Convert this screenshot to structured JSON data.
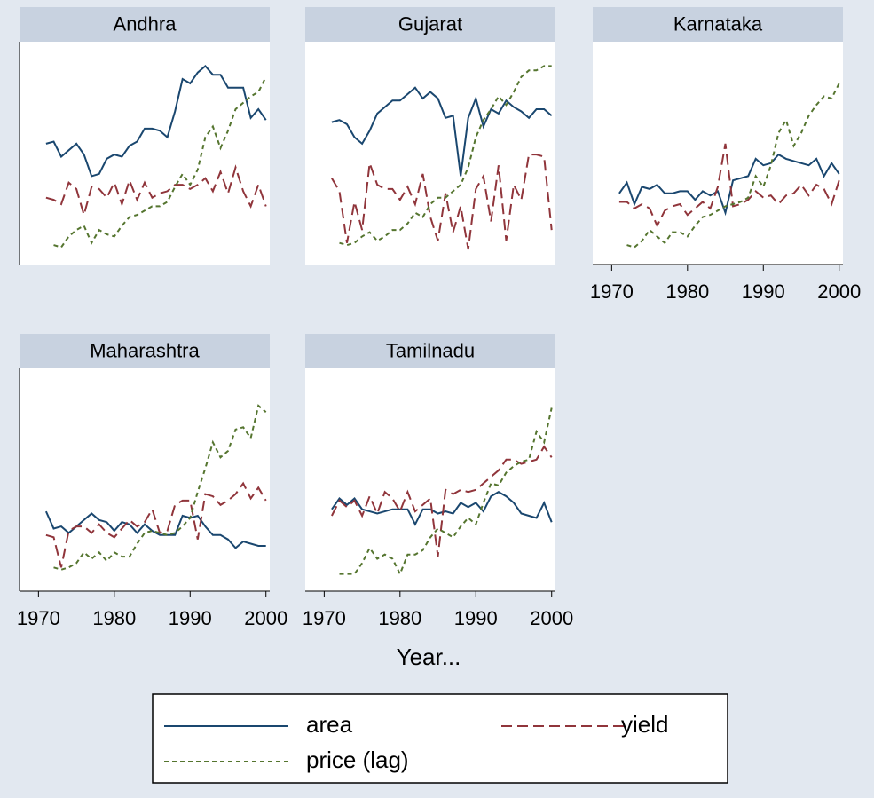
{
  "chart_data": {
    "type": "line",
    "xlabel": "Year...",
    "x": [
      1971,
      1972,
      1973,
      1974,
      1975,
      1976,
      1977,
      1978,
      1979,
      1980,
      1981,
      1982,
      1983,
      1984,
      1985,
      1986,
      1987,
      1988,
      1989,
      1990,
      1991,
      1992,
      1993,
      1994,
      1995,
      1996,
      1997,
      1998,
      1999,
      2000
    ],
    "xlim": [
      1967.5,
      2000.5
    ],
    "xticks": [
      1970,
      1980,
      1990,
      2000
    ],
    "ylim": [
      0,
      100
    ],
    "series": [
      {
        "name": "area",
        "color": "#1a476f",
        "dash": "solid"
      },
      {
        "name": "yield",
        "color": "#90353b",
        "dash": "long"
      },
      {
        "name": "price (lag)",
        "color": "#55752f",
        "dash": "short"
      }
    ],
    "panels": [
      {
        "title": "Andhra",
        "values": [
          [
            56,
            57,
            50,
            53,
            56,
            51,
            41,
            42,
            49,
            51,
            50,
            55,
            57,
            63,
            63,
            62,
            59,
            71,
            86,
            84,
            89,
            92,
            88,
            88,
            82,
            82,
            82,
            68,
            72,
            67
          ],
          [
            31,
            30,
            28,
            38,
            35,
            23,
            36,
            35,
            31,
            38,
            28,
            39,
            30,
            38,
            31,
            33,
            34,
            37,
            37,
            35,
            37,
            40,
            34,
            43,
            33,
            45,
            34,
            27,
            37,
            27
          ],
          [
            null,
            9,
            8,
            13,
            16,
            18,
            10,
            16,
            14,
            13,
            18,
            22,
            23,
            25,
            27,
            27,
            29,
            36,
            42,
            37,
            44,
            59,
            64,
            54,
            62,
            72,
            75,
            78,
            80,
            87
          ]
        ]
      },
      {
        "title": "Gujarat",
        "values": [
          [
            66,
            67,
            65,
            59,
            56,
            62,
            70,
            73,
            76,
            76,
            79,
            82,
            77,
            80,
            77,
            68,
            69,
            41,
            68,
            77,
            64,
            72,
            70,
            76,
            73,
            71,
            68,
            72,
            72,
            69
          ],
          [
            40,
            34,
            10,
            29,
            16,
            47,
            37,
            35,
            35,
            30,
            36,
            28,
            42,
            22,
            11,
            33,
            15,
            27,
            7,
            35,
            41,
            20,
            46,
            11,
            37,
            30,
            51,
            51,
            50,
            16
          ],
          [
            null,
            10,
            9,
            10,
            13,
            15,
            11,
            13,
            16,
            16,
            19,
            24,
            22,
            28,
            31,
            31,
            34,
            37,
            45,
            59,
            67,
            72,
            78,
            74,
            80,
            87,
            90,
            90,
            92,
            92
          ]
        ]
      },
      {
        "title": "Karnataka",
        "values": [
          [
            33,
            38,
            28,
            36,
            35,
            37,
            33,
            33,
            34,
            34,
            30,
            34,
            32,
            34,
            24,
            39,
            40,
            41,
            49,
            46,
            47,
            51,
            49,
            48,
            47,
            46,
            49,
            41,
            47,
            42
          ],
          [
            29,
            29,
            26,
            28,
            26,
            18,
            25,
            27,
            28,
            23,
            26,
            29,
            26,
            36,
            56,
            27,
            28,
            30,
            34,
            31,
            32,
            28,
            32,
            33,
            37,
            32,
            37,
            35,
            28,
            39
          ],
          [
            null,
            9,
            8,
            11,
            16,
            13,
            10,
            15,
            15,
            13,
            18,
            22,
            23,
            25,
            27,
            28,
            29,
            31,
            41,
            36,
            46,
            61,
            67,
            55,
            61,
            69,
            74,
            78,
            77,
            84
          ]
        ]
      },
      {
        "title": "Maharashtra",
        "values": [
          [
            37,
            29,
            30,
            27,
            30,
            33,
            36,
            33,
            32,
            28,
            32,
            31,
            27,
            31,
            28,
            26,
            26,
            26,
            35,
            34,
            35,
            30,
            26,
            26,
            24,
            20,
            23,
            22,
            21,
            21
          ],
          [
            26,
            25,
            11,
            28,
            30,
            30,
            27,
            31,
            27,
            25,
            29,
            33,
            30,
            32,
            38,
            27,
            28,
            40,
            42,
            42,
            24,
            45,
            44,
            40,
            42,
            45,
            50,
            43,
            48,
            42
          ],
          [
            null,
            11,
            10,
            11,
            13,
            18,
            15,
            18,
            14,
            18,
            16,
            16,
            22,
            27,
            28,
            27,
            26,
            27,
            30,
            34,
            46,
            57,
            69,
            62,
            65,
            75,
            76,
            71,
            86,
            83
          ]
        ]
      },
      {
        "title": "Tamilnadu",
        "values": [
          [
            38,
            43,
            40,
            43,
            38,
            37,
            36,
            37,
            38,
            38,
            38,
            31,
            38,
            38,
            36,
            37,
            36,
            41,
            39,
            41,
            37,
            44,
            46,
            44,
            41,
            36,
            35,
            34,
            41,
            32
          ],
          [
            35,
            42,
            39,
            42,
            35,
            44,
            36,
            46,
            43,
            37,
            46,
            37,
            40,
            43,
            16,
            47,
            45,
            47,
            46,
            47,
            50,
            53,
            56,
            61,
            61,
            59,
            60,
            61,
            67,
            62
          ],
          [
            null,
            8,
            8,
            8,
            13,
            20,
            15,
            17,
            15,
            8,
            17,
            17,
            19,
            25,
            29,
            27,
            25,
            30,
            34,
            31,
            41,
            50,
            49,
            55,
            58,
            60,
            61,
            74,
            69,
            85
          ]
        ]
      }
    ]
  }
}
